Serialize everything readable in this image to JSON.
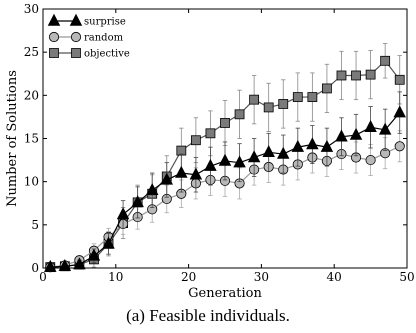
{
  "caption": "(a) Feasible individuals.",
  "chart_data": {
    "type": "line",
    "title": "",
    "xlabel": "Generation",
    "ylabel": "Number of Solutions",
    "xlim": [
      0,
      50
    ],
    "ylim": [
      0,
      30
    ],
    "xticks": [
      "0",
      "10",
      "20",
      "30",
      "40",
      "50"
    ],
    "yticks": [
      "0",
      "5",
      "10",
      "15",
      "20",
      "25",
      "30"
    ],
    "grid": false,
    "legend_position": "top-left",
    "series": [
      {
        "name": "surprise",
        "marker": "triangle",
        "color": "#000000",
        "x": [
          1,
          3,
          5,
          7,
          9,
          11,
          13,
          15,
          17,
          19,
          21,
          23,
          25,
          27,
          29,
          31,
          33,
          35,
          37,
          39,
          41,
          43,
          45,
          47,
          49
        ],
        "y": [
          0.1,
          0.2,
          0.4,
          1.4,
          2.8,
          6.2,
          7.6,
          9.0,
          10.2,
          11.0,
          10.8,
          11.8,
          12.4,
          12.2,
          12.8,
          13.4,
          13.2,
          14.0,
          14.3,
          14.0,
          15.2,
          15.4,
          16.3,
          16.0,
          18.0
        ],
        "err": [
          0.1,
          0.3,
          0.5,
          0.8,
          1.2,
          1.6,
          1.8,
          2.0,
          2.0,
          2.2,
          2.0,
          2.2,
          2.2,
          2.2,
          2.2,
          2.2,
          2.2,
          2.2,
          2.2,
          2.2,
          2.2,
          2.4,
          2.4,
          2.4,
          2.4
        ]
      },
      {
        "name": "random",
        "marker": "circle",
        "color": "#b8b8b8",
        "x": [
          1,
          3,
          5,
          7,
          9,
          11,
          13,
          15,
          17,
          19,
          21,
          23,
          25,
          27,
          29,
          31,
          33,
          35,
          37,
          39,
          41,
          43,
          45,
          47,
          49
        ],
        "y": [
          0.1,
          0.3,
          0.9,
          2.0,
          3.6,
          5.1,
          5.9,
          6.8,
          8.0,
          8.6,
          9.8,
          10.2,
          10.1,
          9.8,
          11.4,
          11.7,
          11.4,
          12.0,
          12.8,
          12.4,
          13.2,
          12.8,
          12.5,
          13.3,
          14.1
        ],
        "err": [
          0.1,
          0.3,
          0.5,
          0.8,
          1.0,
          1.2,
          1.4,
          1.5,
          1.6,
          1.6,
          1.8,
          1.8,
          1.8,
          1.8,
          1.8,
          1.8,
          1.8,
          1.8,
          1.8,
          1.8,
          1.8,
          1.8,
          1.8,
          1.8,
          1.8
        ]
      },
      {
        "name": "objective",
        "marker": "square",
        "color": "#7a7a7a",
        "x": [
          1,
          3,
          5,
          7,
          9,
          11,
          13,
          15,
          17,
          19,
          21,
          23,
          25,
          27,
          29,
          31,
          33,
          35,
          37,
          39,
          41,
          43,
          45,
          47,
          49
        ],
        "y": [
          0.1,
          0.2,
          0.4,
          1.0,
          2.8,
          5.2,
          7.6,
          8.6,
          10.6,
          13.6,
          14.8,
          15.6,
          16.8,
          17.8,
          19.5,
          18.6,
          19.0,
          19.8,
          19.8,
          20.8,
          22.3,
          22.3,
          22.4,
          24.0,
          21.8
        ],
        "err": [
          0.1,
          0.3,
          0.6,
          0.9,
          1.4,
          1.8,
          2.0,
          2.2,
          2.4,
          2.6,
          2.6,
          2.6,
          2.6,
          2.8,
          2.8,
          2.8,
          2.8,
          2.8,
          2.8,
          2.8,
          2.8,
          2.8,
          2.8,
          2.0,
          2.8
        ]
      }
    ]
  }
}
